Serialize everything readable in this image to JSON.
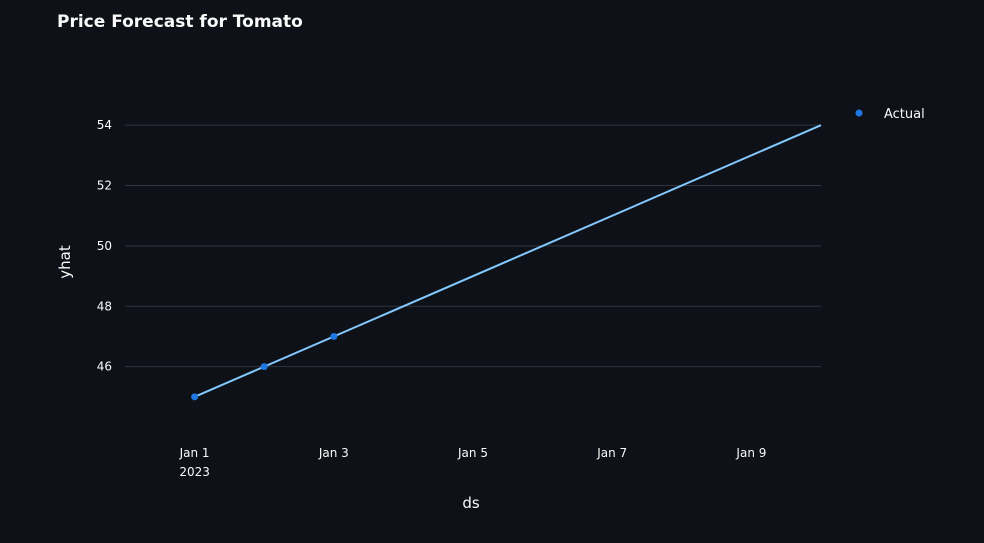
{
  "chart_data": {
    "type": "line",
    "title": "Price Forecast for Tomato",
    "xlabel": "ds",
    "ylabel": "yhat",
    "x_tick_labels": [
      {
        "x": "2023-01-01",
        "label": "Jan 1",
        "sublabel": "2023"
      },
      {
        "x": "2023-01-03",
        "label": "Jan 3",
        "sublabel": ""
      },
      {
        "x": "2023-01-05",
        "label": "Jan 5",
        "sublabel": ""
      },
      {
        "x": "2023-01-07",
        "label": "Jan 7",
        "sublabel": ""
      },
      {
        "x": "2023-01-09",
        "label": "Jan 9",
        "sublabel": ""
      }
    ],
    "y_ticks": [
      46,
      48,
      50,
      52,
      54
    ],
    "xlim": [
      "2022-12-31",
      "2023-01-10"
    ],
    "ylim": [
      44,
      55
    ],
    "grid": true,
    "legend_position": "top-right",
    "series": [
      {
        "name": "Actual",
        "mode": "markers",
        "color": "#1f77e4",
        "x": [
          "2023-01-01",
          "2023-01-02",
          "2023-01-03"
        ],
        "y": [
          45,
          46,
          47
        ],
        "show_in_legend": true
      },
      {
        "name": "",
        "mode": "line",
        "color": "#83c9ff",
        "x": [
          "2023-01-01",
          "2023-01-10"
        ],
        "y": [
          45,
          54
        ],
        "show_in_legend": false
      }
    ]
  }
}
